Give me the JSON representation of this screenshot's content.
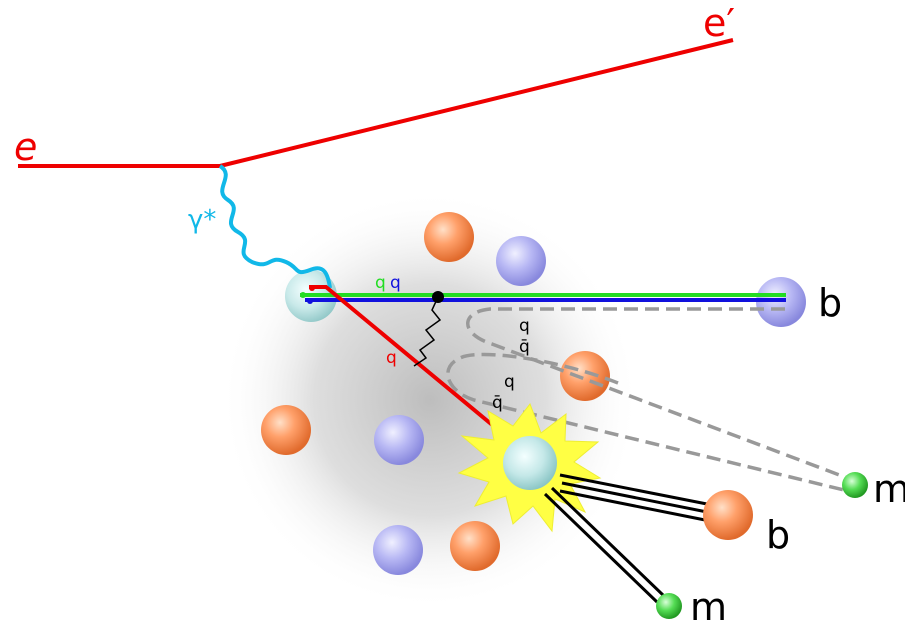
{
  "labels": {
    "electron_in": "e",
    "electron_out": "e′",
    "photon": "γ*",
    "diquark_q1": "q",
    "diquark_q2": "q",
    "struck_quark": "q",
    "pair1_quark": "q",
    "pair1_antiquark": "q̄",
    "pair2_quark": "q",
    "pair2_antiquark": "q̄",
    "baryon_forward": "b",
    "meson_forward": "m",
    "baryon_recoil": "b",
    "meson_recoil": "m"
  },
  "colors": {
    "lepton": "#ee0000",
    "photon": "#11b8e8",
    "quark_red": "#ee0000",
    "quark_green": "#22dd22",
    "quark_blue": "#1111dd",
    "string": "#999999",
    "proton_sphere": "#ff9966",
    "neutron_sphere": "#aaaaee",
    "meson_sphere": "#44cc44",
    "flash": "#ffff44",
    "hadron_core": "#aadddd"
  }
}
